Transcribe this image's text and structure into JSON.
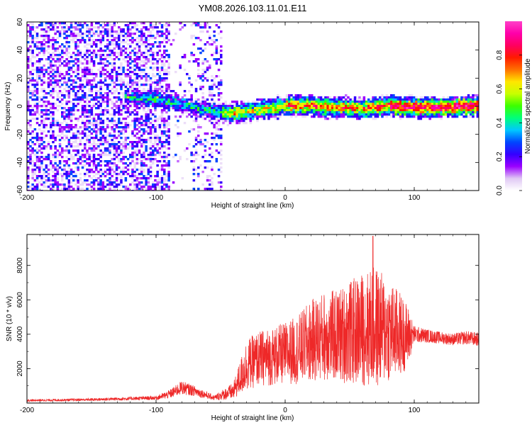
{
  "title": "YM08.2026.103.11.01.E11",
  "chart_data": [
    {
      "type": "heatmap",
      "title": "YM08.2026.103.11.01.E11",
      "xlabel": "Height of straight line (km)",
      "ylabel": "Frequency (Hz)",
      "xlim": [
        -200,
        150
      ],
      "ylim": [
        -60,
        60
      ],
      "xticks": [
        -200,
        -100,
        0,
        100
      ],
      "yticks": [
        60,
        40,
        20,
        0,
        -20,
        -40,
        -60
      ],
      "colorbar": {
        "label": "Normalized spectral amplitude",
        "range": [
          0,
          1
        ],
        "ticks": [
          0,
          0.2,
          0.4,
          0.6,
          0.8
        ],
        "colors": [
          "#ffffff",
          "#e0c8f4",
          "#9a00ff",
          "#3400ff",
          "#0046ff",
          "#00c8ff",
          "#00ff7a",
          "#3cff00",
          "#c8ff00",
          "#ffe600",
          "#ff7000",
          "#ff1a00",
          "#ff0060",
          "#ff00aa",
          "#ff40c8"
        ]
      },
      "ridge": {
        "description_points_km": [
          -125,
          -100,
          -80,
          -60,
          -45,
          -30,
          -15,
          0,
          20,
          40,
          60,
          80,
          100,
          120,
          150
        ],
        "center_freq_hz": [
          7,
          6,
          2,
          -2,
          -4,
          -3,
          -1,
          1,
          1,
          0,
          -1,
          1,
          0,
          0,
          1
        ]
      }
    },
    {
      "type": "line",
      "xlabel": "Height of straight line (km)",
      "ylabel": "SNR (10 * v/v)",
      "xlim": [
        -200,
        150
      ],
      "ylim": [
        0,
        9800
      ],
      "xticks": [
        -200,
        -100,
        0,
        100
      ],
      "yticks": [
        2000,
        4000,
        6000,
        8000
      ],
      "color": "#ee2828",
      "envelope": {
        "x_km": [
          -200,
          -150,
          -100,
          -90,
          -80,
          -70,
          -55,
          -40,
          -30,
          -20,
          -10,
          0,
          10,
          20,
          30,
          40,
          50,
          60,
          70,
          80,
          90,
          95,
          100,
          110,
          120,
          130,
          140,
          150
        ],
        "mean": [
          150,
          200,
          300,
          500,
          900,
          700,
          300,
          700,
          2200,
          2600,
          2700,
          2900,
          3100,
          3600,
          3900,
          3900,
          4100,
          4300,
          4400,
          4200,
          4000,
          3900,
          4000,
          3900,
          3800,
          3700,
          3800,
          3700
        ],
        "amplitude": [
          60,
          80,
          120,
          250,
          400,
          300,
          150,
          500,
          1500,
          1600,
          1700,
          1800,
          2000,
          2400,
          2600,
          2700,
          3000,
          3300,
          3600,
          3000,
          2400,
          1800,
          500,
          400,
          350,
          350,
          400,
          400
        ]
      },
      "peak": {
        "x_km": 68,
        "value": 9700
      }
    }
  ]
}
